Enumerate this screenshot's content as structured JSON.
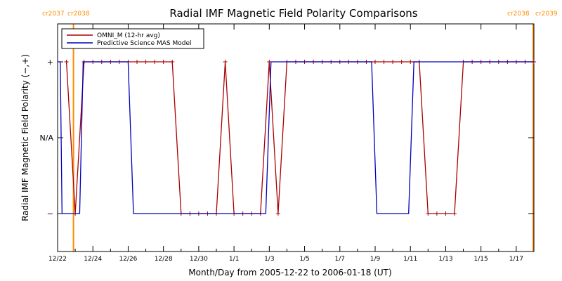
{
  "chart_data": {
    "type": "line",
    "title": "Radial IMF Magnetic Field Polarity Comparisons",
    "xlabel": "Month/Day from 2005-12-22 to 2006-01-18 (UT)",
    "ylabel": "Radial IMF Magnetic Field Polarity (−,+)",
    "x_start": "2005-12-22",
    "x_end": "2006-01-18",
    "xlim": [
      0,
      27
    ],
    "ylim": [
      -1.5,
      1.5
    ],
    "y_ticks": [
      {
        "value": 1,
        "label": "+"
      },
      {
        "value": 0,
        "label": "N/A"
      },
      {
        "value": -1,
        "label": "−"
      }
    ],
    "x_ticks": [
      {
        "day": 0,
        "label": "12/22"
      },
      {
        "day": 2,
        "label": "12/24"
      },
      {
        "day": 4,
        "label": "12/26"
      },
      {
        "day": 6,
        "label": "12/28"
      },
      {
        "day": 8,
        "label": "12/30"
      },
      {
        "day": 10,
        "label": "1/1"
      },
      {
        "day": 12,
        "label": "1/3"
      },
      {
        "day": 14,
        "label": "1/5"
      },
      {
        "day": 16,
        "label": "1/7"
      },
      {
        "day": 18,
        "label": "1/9"
      },
      {
        "day": 20,
        "label": "1/11"
      },
      {
        "day": 22,
        "label": "1/13"
      },
      {
        "day": 24,
        "label": "1/15"
      },
      {
        "day": 26,
        "label": "1/17"
      }
    ],
    "rotation_markers": [
      {
        "day": 0.9,
        "left_label": "cr2037",
        "right_label": "cr2038"
      },
      {
        "day": 27.0,
        "left_label": "cr2038",
        "right_label": "cr2039"
      }
    ],
    "legend_position": "top-left",
    "series": [
      {
        "name": "OMNI_M (12-hr avg)",
        "color": "#aa0000",
        "markers": true,
        "points": [
          [
            0.5,
            1
          ],
          [
            1.0,
            -1
          ],
          [
            1.5,
            1
          ],
          [
            2.0,
            1
          ],
          [
            2.5,
            1
          ],
          [
            3.0,
            1
          ],
          [
            3.5,
            1
          ],
          [
            4.0,
            1
          ],
          [
            4.5,
            1
          ],
          [
            5.0,
            1
          ],
          [
            5.5,
            1
          ],
          [
            6.0,
            1
          ],
          [
            6.5,
            1
          ],
          [
            7.0,
            -1
          ],
          [
            7.5,
            -1
          ],
          [
            8.0,
            -1
          ],
          [
            8.5,
            -1
          ],
          [
            9.0,
            -1
          ],
          [
            9.5,
            1
          ],
          [
            10.0,
            -1
          ],
          [
            10.5,
            -1
          ],
          [
            11.0,
            -1
          ],
          [
            11.5,
            -1
          ],
          [
            12.0,
            1
          ],
          [
            12.5,
            -1
          ],
          [
            13.0,
            1
          ],
          [
            13.5,
            1
          ],
          [
            14.0,
            1
          ],
          [
            14.5,
            1
          ],
          [
            15.0,
            1
          ],
          [
            15.5,
            1
          ],
          [
            16.0,
            1
          ],
          [
            16.5,
            1
          ],
          [
            17.0,
            1
          ],
          [
            17.5,
            1
          ],
          [
            18.0,
            1
          ],
          [
            18.5,
            1
          ],
          [
            19.0,
            1
          ],
          [
            19.5,
            1
          ],
          [
            20.0,
            1
          ],
          [
            20.5,
            1
          ],
          [
            21.0,
            -1
          ],
          [
            21.5,
            -1
          ],
          [
            22.0,
            -1
          ],
          [
            22.5,
            -1
          ],
          [
            23.0,
            1
          ],
          [
            23.5,
            1
          ],
          [
            24.0,
            1
          ],
          [
            24.5,
            1
          ],
          [
            25.0,
            1
          ],
          [
            25.5,
            1
          ],
          [
            26.0,
            1
          ],
          [
            26.5,
            1
          ],
          [
            27.0,
            1
          ]
        ]
      },
      {
        "name": "Predictive Science MAS Model",
        "color": "#0000bb",
        "markers": false,
        "points": [
          [
            0.0,
            1
          ],
          [
            0.15,
            1
          ],
          [
            0.25,
            -1
          ],
          [
            1.25,
            -1
          ],
          [
            1.45,
            1
          ],
          [
            4.0,
            1
          ],
          [
            4.3,
            -1
          ],
          [
            11.8,
            -1
          ],
          [
            12.1,
            1
          ],
          [
            17.8,
            1
          ],
          [
            18.1,
            -1
          ],
          [
            19.9,
            -1
          ],
          [
            20.2,
            1
          ],
          [
            27.0,
            1
          ]
        ]
      }
    ]
  }
}
